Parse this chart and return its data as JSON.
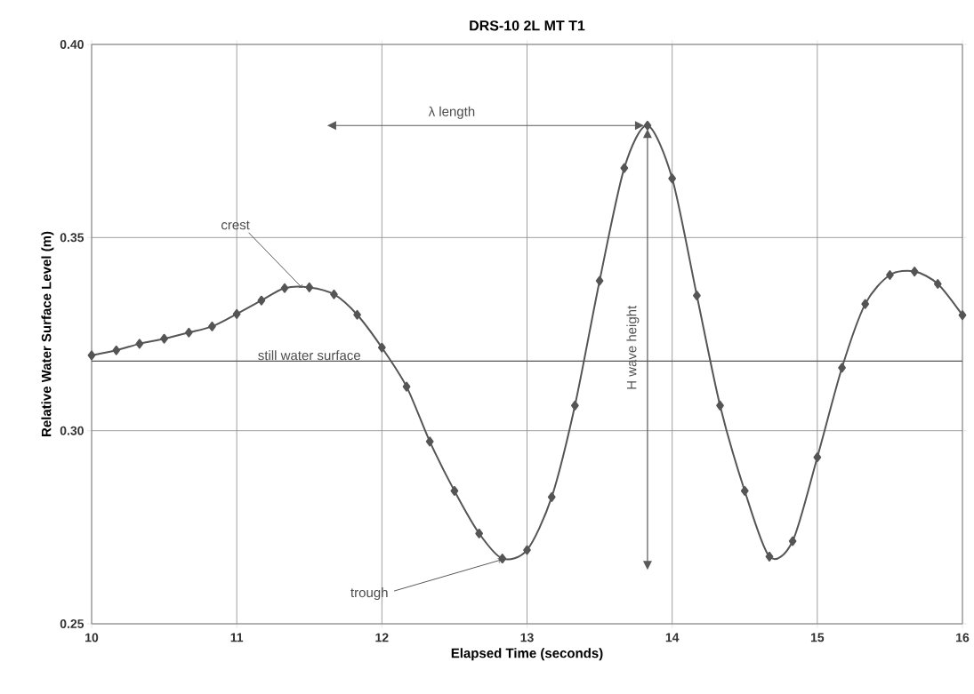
{
  "chart_data": {
    "type": "line",
    "title": "DRS-10 2L MT T1",
    "xlabel": "Elapsed Time (seconds)",
    "ylabel": "Relative Water Surface Level (m)",
    "x": [
      10.0,
      10.17,
      10.33,
      10.5,
      10.67,
      10.83,
      11.0,
      11.17,
      11.33,
      11.5,
      11.67,
      11.83,
      12.0,
      12.17,
      12.33,
      12.5,
      12.67,
      12.83,
      13.0,
      13.17,
      13.33,
      13.5,
      13.67,
      13.83,
      14.0,
      14.17,
      14.33,
      14.5,
      14.67,
      14.83,
      15.0,
      15.17,
      15.33,
      15.5,
      15.67,
      15.83,
      16.0
    ],
    "series": [
      {
        "color": "#555555",
        "values": [
          0.3195,
          0.3208,
          0.3225,
          0.3238,
          0.3254,
          0.327,
          0.3302,
          0.3337,
          0.3369,
          0.3371,
          0.3353,
          0.33,
          0.3215,
          0.3114,
          0.2972,
          0.2844,
          0.2734,
          0.2669,
          0.2691,
          0.2828,
          0.3065,
          0.3388,
          0.368,
          0.379,
          0.3653,
          0.335,
          0.3065,
          0.2844,
          0.2674,
          0.2714,
          0.2931,
          0.3163,
          0.3328,
          0.3403,
          0.3412,
          0.338,
          0.3299
        ]
      }
    ],
    "xlim": [
      10,
      16
    ],
    "ylim": [
      0.25,
      0.4
    ],
    "xticks": [
      10,
      11,
      12,
      13,
      14,
      15,
      16
    ],
    "yticks": [
      {
        "value": 0.25,
        "label": "0.25"
      },
      {
        "value": 0.3,
        "label": "0.30"
      },
      {
        "value": 0.35,
        "label": "0.35"
      },
      {
        "value": 0.4,
        "label": "0.40"
      }
    ],
    "grid": true,
    "marker": "diamond",
    "line_style": "solid",
    "ref_lines": [
      {
        "axis": "y",
        "value": 0.318,
        "label": "still water surface",
        "color": "#555555"
      }
    ],
    "annotations": [
      {
        "text": "crest",
        "x": 11.45,
        "y": 0.337
      },
      {
        "text": "trough",
        "x": 12.85,
        "y": 0.267
      },
      "λ   length",
      "H wave height"
    ]
  }
}
